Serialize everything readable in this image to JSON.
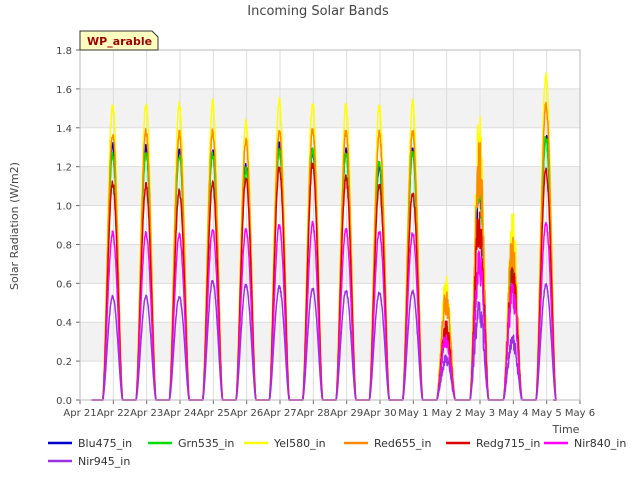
{
  "chart_data": {
    "type": "line",
    "title": "Incoming Solar Bands",
    "xlabel": "Time",
    "ylabel": "Solar Radiation (W/m2)",
    "site_label": "WP_arable",
    "ylim": [
      0,
      1.8
    ],
    "yticks": [
      "0.0",
      "0.2",
      "0.4",
      "0.6",
      "0.8",
      "1.0",
      "1.2",
      "1.4",
      "1.6",
      "1.8"
    ],
    "xlim": [
      21,
      36
    ],
    "xticks": [
      {
        "v": 21,
        "label": "Apr 21"
      },
      {
        "v": 22,
        "label": "Apr 22"
      },
      {
        "v": 23,
        "label": "Apr 23"
      },
      {
        "v": 24,
        "label": "Apr 24"
      },
      {
        "v": 25,
        "label": "Apr 25"
      },
      {
        "v": 26,
        "label": "Apr 26"
      },
      {
        "v": 27,
        "label": "Apr 27"
      },
      {
        "v": 28,
        "label": "Apr 28"
      },
      {
        "v": 29,
        "label": "Apr 29"
      },
      {
        "v": 30,
        "label": "Apr 30"
      },
      {
        "v": 31,
        "label": "May 1"
      },
      {
        "v": 32,
        "label": "May 2"
      },
      {
        "v": 33,
        "label": "May 3"
      },
      {
        "v": 34,
        "label": "May 4"
      },
      {
        "v": 35,
        "label": "May 5"
      },
      {
        "v": 36,
        "label": "May 6"
      }
    ],
    "grid": true,
    "legend_position": "bottom",
    "daily_peak_day": [
      22,
      23,
      24,
      25,
      26,
      27,
      28,
      29,
      30,
      31,
      32,
      33,
      34,
      35
    ],
    "series": [
      {
        "name": "Blu475_in",
        "color": "#0000cc",
        "values": [
          1.33,
          1.32,
          1.31,
          1.31,
          1.22,
          1.33,
          1.3,
          1.3,
          1.22,
          1.31,
          0.38,
          1.35,
          0.85,
          1.38
        ]
      },
      {
        "name": "Grn535_in",
        "color": "#00dd00",
        "values": [
          1.28,
          1.29,
          1.28,
          1.28,
          1.2,
          1.3,
          1.3,
          1.29,
          1.24,
          1.29,
          0.4,
          1.32,
          0.84,
          1.37
        ]
      },
      {
        "name": "Yel580_in",
        "color": "#ffff00",
        "values": [
          1.54,
          1.55,
          1.54,
          1.55,
          1.45,
          1.56,
          1.55,
          1.54,
          1.53,
          1.55,
          0.65,
          1.52,
          0.99,
          1.7
        ]
      },
      {
        "name": "Red655_in",
        "color": "#ff8c00",
        "values": [
          1.39,
          1.4,
          1.39,
          1.4,
          1.35,
          1.41,
          1.41,
          1.4,
          1.39,
          1.4,
          0.58,
          1.37,
          0.9,
          1.54
        ]
      },
      {
        "name": "Redg715_in",
        "color": "#dd0000",
        "values": [
          1.13,
          1.12,
          1.09,
          1.13,
          1.16,
          1.21,
          1.23,
          1.16,
          1.12,
          1.08,
          0.42,
          1.04,
          0.71,
          1.2
        ]
      },
      {
        "name": "Nir840_in",
        "color": "#ff00ff",
        "values": [
          0.87,
          0.87,
          0.86,
          0.89,
          0.89,
          0.91,
          0.92,
          0.89,
          0.88,
          0.87,
          0.36,
          0.8,
          0.63,
          0.92
        ]
      },
      {
        "name": "Nir945_in",
        "color": "#9b30e0",
        "values": [
          0.54,
          0.54,
          0.54,
          0.62,
          0.6,
          0.59,
          0.58,
          0.57,
          0.56,
          0.57,
          0.24,
          0.53,
          0.35,
          0.6
        ]
      }
    ]
  }
}
